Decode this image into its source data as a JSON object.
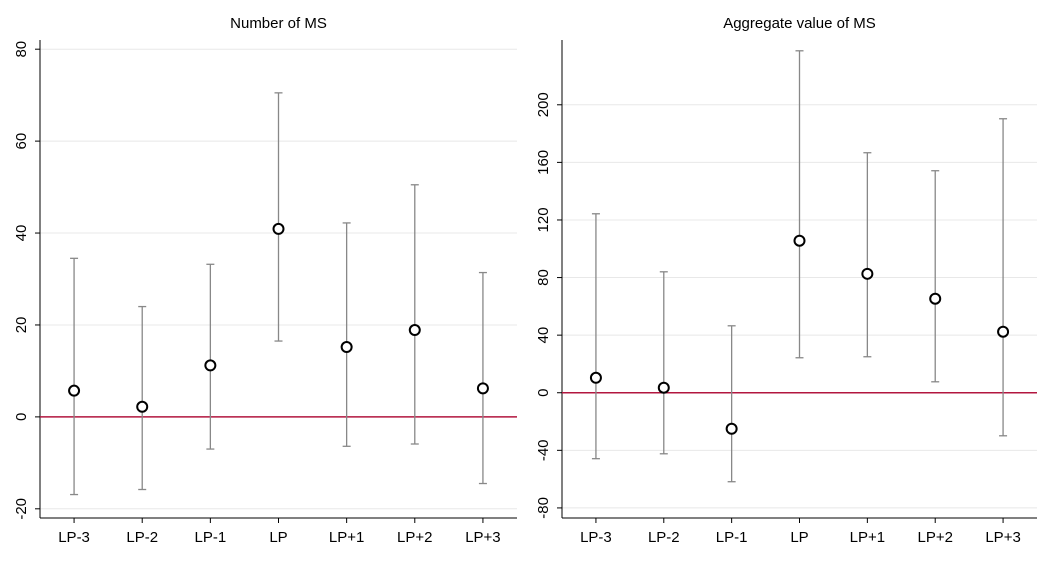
{
  "chart_data": [
    {
      "type": "errorbar",
      "title": "Number of MS",
      "categories": [
        "LP-3",
        "LP-2",
        "LP-1",
        "LP",
        "LP+1",
        "LP+2",
        "LP+3"
      ],
      "values": [
        5.7,
        2.2,
        11.2,
        40.9,
        15.2,
        18.9,
        6.2
      ],
      "lower": [
        -16.9,
        -15.8,
        -7.0,
        16.5,
        -6.4,
        -5.9,
        -14.5
      ],
      "upper": [
        34.5,
        24.0,
        33.2,
        70.5,
        42.2,
        50.5,
        31.4
      ],
      "ylim": [
        -22,
        82
      ],
      "yticks": [
        -20,
        0,
        20,
        40,
        60,
        80
      ],
      "grid": true,
      "refline": 0,
      "color": "#000000",
      "bar_color": "#888888",
      "refline_color": "#b2163f"
    },
    {
      "type": "errorbar",
      "title": "Aggregate value of MS",
      "categories": [
        "LP-3",
        "LP-2",
        "LP-1",
        "LP",
        "LP+1",
        "LP+2",
        "LP+3"
      ],
      "values": [
        10.4,
        3.5,
        -25,
        105.6,
        82.6,
        65.3,
        42.4
      ],
      "lower": [
        -45.8,
        -42.4,
        -61.8,
        24.3,
        25,
        7.6,
        -29.9
      ],
      "upper": [
        124.3,
        84,
        46.5,
        237.5,
        166.7,
        154.2,
        190.3
      ],
      "ylim": [
        -87,
        245
      ],
      "yticks": [
        -80,
        -40,
        0,
        40,
        80,
        120,
        160,
        200
      ],
      "grid": true,
      "refline": 0,
      "color": "#000000",
      "bar_color": "#888888",
      "refline_color": "#b2163f"
    }
  ]
}
